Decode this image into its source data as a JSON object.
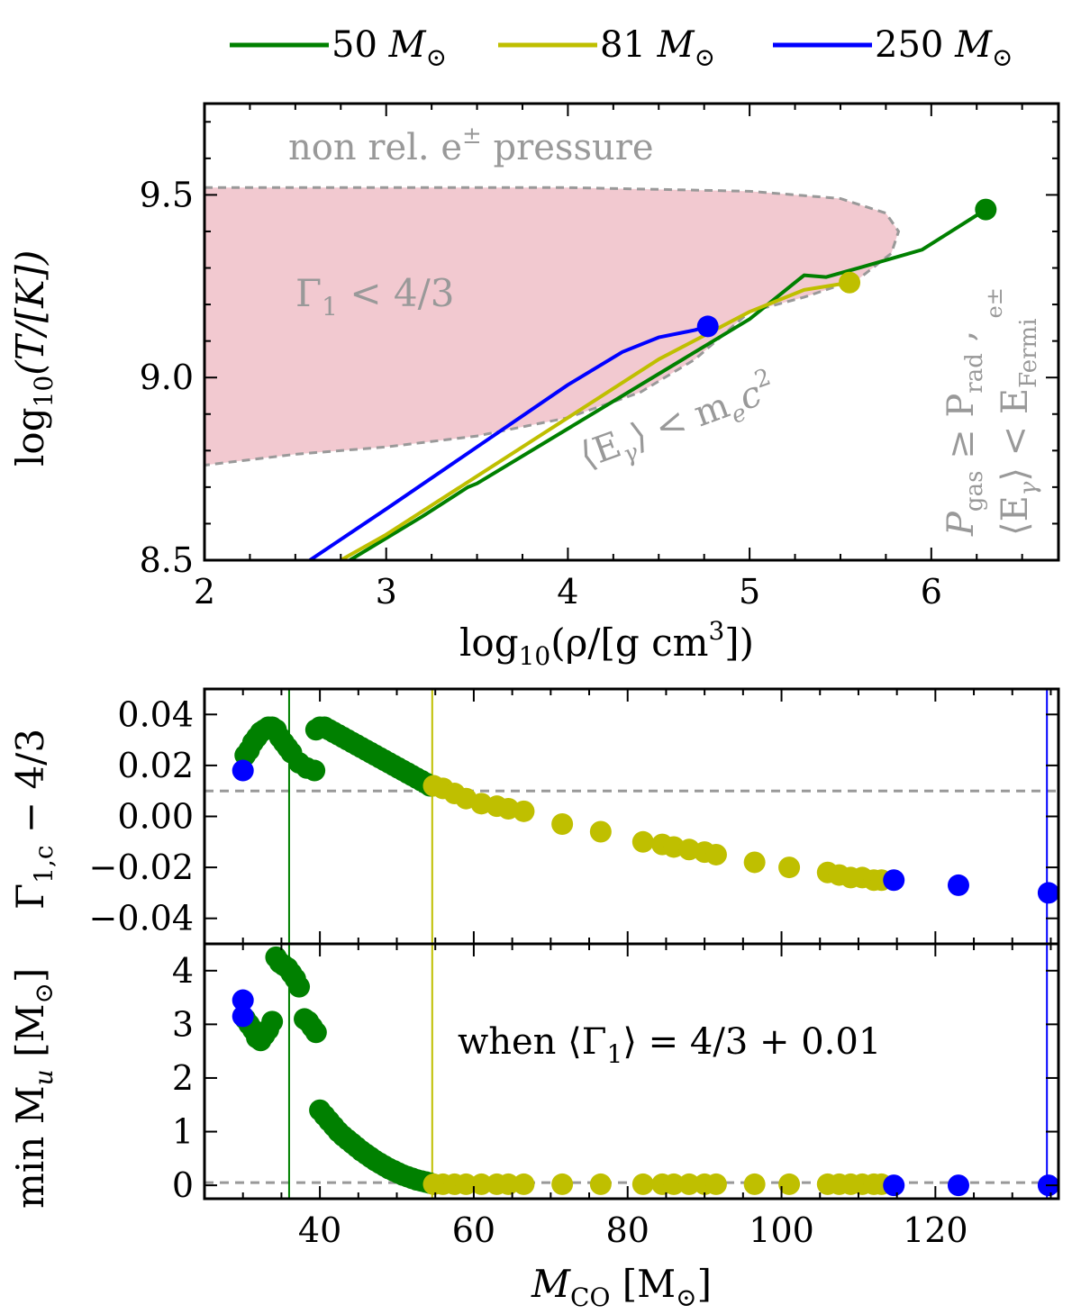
{
  "legend": {
    "items": [
      {
        "name": "50 M_sun",
        "mass_label": "50",
        "unit": "M",
        "sub": "⊙",
        "color": "#008000"
      },
      {
        "name": "81 M_sun",
        "mass_label": "81",
        "unit": "M",
        "sub": "⊙",
        "color": "#bfbf00"
      },
      {
        "name": "250 M_sun",
        "mass_label": "250",
        "unit": "M",
        "sub": "⊙",
        "color": "#0000ff"
      }
    ]
  },
  "chart_data": [
    {
      "id": "top",
      "type": "line",
      "xlabel_main": "log",
      "xlabel_sub": "10",
      "xlabel_rest": "(ρ/[g cm",
      "xlabel_sup": "3",
      "xlabel_end": "])",
      "ylabel_main": "log",
      "ylabel_sub": "10",
      "ylabel_rest": "(T/[K])",
      "xlim": [
        2,
        6.7
      ],
      "ylim": [
        8.5,
        9.75
      ],
      "xticks": [
        "2",
        "3",
        "4",
        "5",
        "6"
      ],
      "xtick_values": [
        2,
        3,
        4,
        5,
        6
      ],
      "yticks": [
        "8.5",
        "9.0",
        "9.5"
      ],
      "ytick_values": [
        8.5,
        9.0,
        9.5
      ],
      "annotations": {
        "region_top": "non rel. e",
        "region_top_sup": "±",
        "region_top_rest": " pressure",
        "gamma": "Γ",
        "gamma_sub": "1",
        "gamma_rest": " < 4/3",
        "egamma": "⟨E",
        "egamma_sub": "γ",
        "egamma_rest": "⟩ < m",
        "egamma_sub2": "e",
        "egamma_rest2": "c",
        "egamma_sup": "2",
        "pgas": "P",
        "pgas_sub": "gas",
        "pgas_rest": " ≥ P",
        "pgas_sub2": "rad",
        "pgas_end": " ,",
        "efermi": "⟨E",
        "efermi_sub": "γ",
        "efermi_rest": "⟩ < E",
        "efermi_sub2": "Fermi",
        "efermi_sup": "e±"
      },
      "region_upper": [
        [
          2,
          9.52
        ],
        [
          3,
          9.52
        ],
        [
          4,
          9.52
        ],
        [
          5,
          9.51
        ],
        [
          5.5,
          9.49
        ],
        [
          5.75,
          9.45
        ],
        [
          5.82,
          9.4
        ],
        [
          5.78,
          9.34
        ],
        [
          5.6,
          9.27
        ],
        [
          5.3,
          9.22
        ],
        [
          5.0,
          9.18
        ]
      ],
      "region_lower": [
        [
          2,
          8.76
        ],
        [
          2.5,
          8.79
        ],
        [
          3,
          8.81
        ],
        [
          3.5,
          8.84
        ],
        [
          4,
          8.89
        ],
        [
          4.4,
          8.96
        ],
        [
          4.7,
          9.05
        ],
        [
          5.0,
          9.18
        ]
      ],
      "series": [
        {
          "name": "50",
          "color": "#008000",
          "x": [
            2.8,
            3.2,
            3.45,
            3.5,
            4.0,
            4.5,
            5.0,
            5.3,
            5.42,
            5.6,
            5.95,
            6.3
          ],
          "y": [
            8.5,
            8.62,
            8.7,
            8.71,
            8.86,
            9.01,
            9.16,
            9.28,
            9.275,
            9.3,
            9.35,
            9.46
          ],
          "end": [
            6.3,
            9.46
          ]
        },
        {
          "name": "81",
          "color": "#bfbf00",
          "x": [
            2.75,
            3.0,
            3.5,
            4.0,
            4.5,
            5.0,
            5.3,
            5.55
          ],
          "y": [
            8.5,
            8.57,
            8.73,
            8.89,
            9.05,
            9.18,
            9.24,
            9.26
          ],
          "end": [
            5.55,
            9.26
          ]
        },
        {
          "name": "250",
          "color": "#0000ff",
          "x": [
            2.58,
            3.0,
            3.5,
            4.0,
            4.3,
            4.5,
            4.7,
            4.77
          ],
          "y": [
            8.5,
            8.64,
            8.81,
            8.98,
            9.07,
            9.11,
            9.13,
            9.14
          ],
          "end": [
            4.77,
            9.14
          ]
        }
      ]
    },
    {
      "id": "middle",
      "type": "scatter",
      "ylabel_main": "Γ",
      "ylabel_sub": "1,c",
      "ylabel_rest": " − 4/3",
      "xlim": [
        25,
        136
      ],
      "ylim": [
        -0.05,
        0.05
      ],
      "yticks": [
        "0.04",
        "0.02",
        "0.00",
        "−0.02",
        "−0.04"
      ],
      "ytick_values": [
        0.04,
        0.02,
        0.0,
        -0.02,
        -0.04
      ],
      "hline": 0.01,
      "vlines": [
        {
          "x": 36,
          "color": "#008000"
        },
        {
          "x": 54.6,
          "color": "#bfbf00"
        },
        {
          "x": 134.5,
          "color": "#0000ff"
        }
      ],
      "series": [
        {
          "name": "50",
          "color": "#008000",
          "x": [
            30.3,
            30.8,
            31.3,
            31.8,
            32.3,
            32.8,
            33.3,
            33.8,
            34.3,
            34.8,
            35.3,
            35.8,
            36.3,
            37.3,
            38.3,
            39.3,
            39.5,
            40.0,
            40.6,
            41.2,
            41.8,
            42.4,
            43.0,
            43.6,
            44.2,
            44.8,
            45.4,
            46.0,
            46.6,
            47.2,
            47.8,
            48.4,
            49.0,
            49.6,
            50.2,
            50.8,
            51.4,
            52.0,
            52.6,
            53.2,
            53.8,
            54.3
          ],
          "y": [
            0.024,
            0.026,
            0.029,
            0.031,
            0.033,
            0.034,
            0.035,
            0.035,
            0.034,
            0.031,
            0.029,
            0.027,
            0.025,
            0.021,
            0.019,
            0.018,
            0.034,
            0.035,
            0.035,
            0.034,
            0.033,
            0.032,
            0.031,
            0.03,
            0.029,
            0.028,
            0.027,
            0.026,
            0.025,
            0.024,
            0.023,
            0.022,
            0.021,
            0.02,
            0.019,
            0.018,
            0.017,
            0.016,
            0.015,
            0.014,
            0.013,
            0.012
          ]
        },
        {
          "name": "81",
          "color": "#bfbf00",
          "x": [
            54.8,
            56.0,
            57.5,
            59.0,
            61.0,
            63.0,
            64.5,
            66.5,
            71.5,
            76.5,
            82,
            84.5,
            86,
            88,
            90,
            91.5,
            96.5,
            101,
            106,
            107.5,
            109,
            110.5,
            112,
            113
          ],
          "y": [
            0.012,
            0.011,
            0.009,
            0.007,
            0.005,
            0.004,
            0.003,
            0.002,
            -0.003,
            -0.006,
            -0.01,
            -0.011,
            -0.012,
            -0.013,
            -0.014,
            -0.015,
            -0.018,
            -0.02,
            -0.022,
            -0.023,
            -0.024,
            -0.024,
            -0.025,
            -0.025
          ]
        },
        {
          "name": "250",
          "color": "#0000ff",
          "x": [
            30.0,
            114.6,
            123.0,
            134.7
          ],
          "y": [
            0.018,
            -0.025,
            -0.027,
            -0.03
          ]
        }
      ]
    },
    {
      "id": "bottom",
      "type": "scatter",
      "ylabel_main": "min M",
      "ylabel_sub": "u",
      "ylabel_rest": " [M",
      "ylabel_sub2": "⊙",
      "ylabel_end": "]",
      "xlabel_main": "M",
      "xlabel_sub": "CO",
      "xlabel_rest": " [M",
      "xlabel_sub2": "⊙",
      "xlabel_end": "]",
      "xlim": [
        25,
        136
      ],
      "ylim": [
        -0.25,
        4.5
      ],
      "xticks": [
        "40",
        "60",
        "80",
        "100",
        "120"
      ],
      "xtick_values": [
        40,
        60,
        80,
        100,
        120
      ],
      "yticks": [
        "0",
        "1",
        "2",
        "3",
        "4"
      ],
      "ytick_values": [
        0,
        1,
        2,
        3,
        4
      ],
      "hline": 0.05,
      "annotation_a": "when ⟨Γ",
      "annotation_sub": "1",
      "annotation_b": "⟩ = 4/3 + 0.01",
      "vlines": [
        {
          "x": 36,
          "color": "#008000"
        },
        {
          "x": 54.6,
          "color": "#bfbf00"
        },
        {
          "x": 134.5,
          "color": "#0000ff"
        }
      ],
      "series": [
        {
          "name": "50",
          "color": "#008000",
          "x": [
            30.3,
            30.8,
            31.3,
            31.8,
            32.3,
            32.8,
            33.3,
            33.8,
            34.3,
            34.8,
            35.3,
            35.8,
            36.3,
            36.8,
            37.3,
            38.0,
            38.5,
            39.0,
            39.5,
            40.0,
            40.6,
            41.2,
            41.8,
            42.4,
            43.0,
            43.6,
            44.2,
            44.8,
            45.4,
            46.0,
            46.6,
            47.2,
            47.8,
            48.4,
            49.0,
            49.6,
            50.2,
            50.8,
            51.4,
            52.0,
            52.6,
            53.2,
            53.8,
            54.3
          ],
          "y": [
            3.1,
            3.0,
            2.9,
            2.75,
            2.7,
            2.8,
            2.9,
            3.05,
            4.25,
            4.15,
            4.1,
            4.05,
            3.95,
            3.85,
            3.7,
            3.1,
            3.05,
            2.95,
            2.85,
            1.4,
            1.3,
            1.2,
            1.1,
            1.0,
            0.92,
            0.85,
            0.78,
            0.71,
            0.64,
            0.58,
            0.52,
            0.46,
            0.41,
            0.36,
            0.31,
            0.27,
            0.23,
            0.19,
            0.16,
            0.13,
            0.1,
            0.08,
            0.06,
            0.04
          ]
        },
        {
          "name": "81",
          "color": "#bfbf00",
          "x": [
            54.8,
            56.0,
            57.5,
            59.0,
            61.0,
            63.0,
            64.5,
            66.5,
            71.5,
            76.5,
            82,
            84.5,
            86,
            88,
            90,
            91.5,
            96.5,
            101,
            106,
            107.5,
            109,
            110.5,
            112,
            113
          ],
          "y": [
            0.02,
            0.02,
            0.02,
            0.02,
            0.02,
            0.02,
            0.02,
            0.02,
            0.02,
            0.02,
            0.02,
            0.02,
            0.02,
            0.02,
            0.02,
            0.02,
            0.02,
            0.02,
            0.02,
            0.02,
            0.02,
            0.02,
            0.02,
            0.02
          ]
        },
        {
          "name": "250",
          "color": "#0000ff",
          "x": [
            30.0,
            30.0,
            114.6,
            123.0,
            134.7
          ],
          "y": [
            3.45,
            3.15,
            0.0,
            0.0,
            0.0
          ]
        }
      ]
    }
  ]
}
